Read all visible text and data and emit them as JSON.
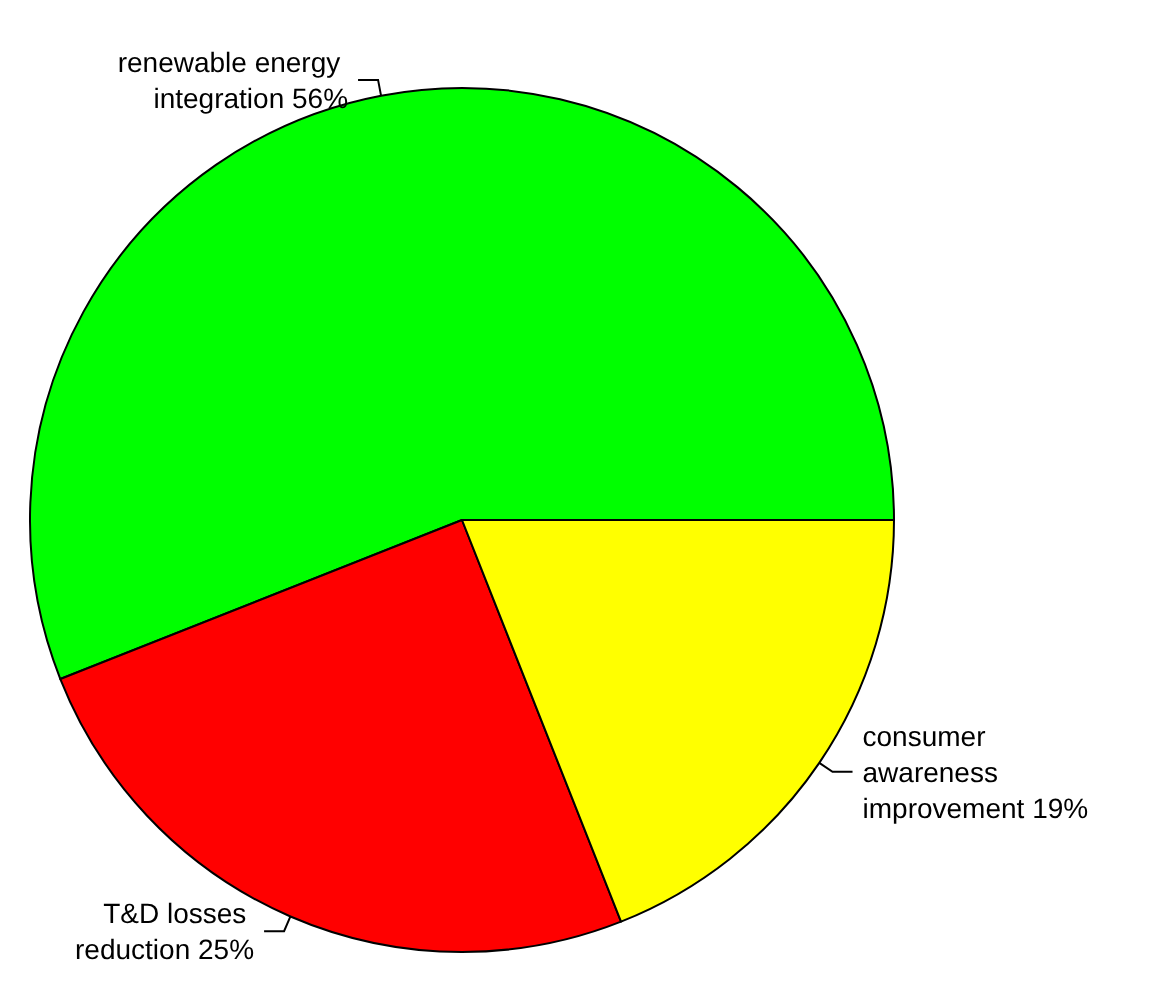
{
  "chart_data": {
    "type": "pie",
    "categories": [
      "renewable energy integration",
      "T&D losses reduction",
      "consumer awareness improvement"
    ],
    "values": [
      56,
      25,
      19
    ],
    "value_labels": [
      "56%",
      "25%",
      "19%"
    ],
    "colors": [
      "#00ff00",
      "#ff0000",
      "#ffff00"
    ]
  }
}
